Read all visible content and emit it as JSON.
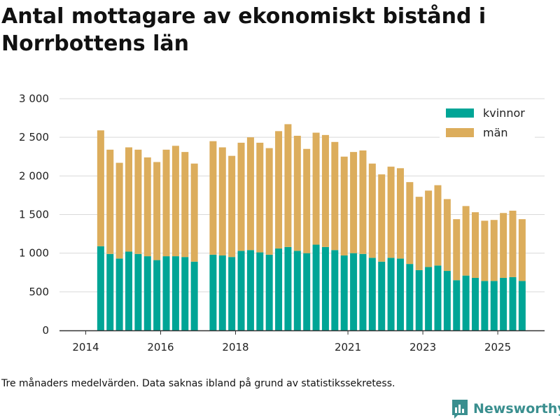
{
  "chart_data": {
    "type": "bar",
    "stacked": true,
    "title": "Antal mottagare av ekonomiskt bistånd i Norrbottens län",
    "xlabel": "",
    "ylabel": "",
    "ylim": [
      0,
      3000
    ],
    "yticks": [
      0,
      500,
      1000,
      1500,
      2000,
      2500,
      3000
    ],
    "ytick_labels": [
      "0",
      "500",
      "1 000",
      "1 500",
      "2 000",
      "2 500",
      "3 000"
    ],
    "xticks": [
      2014,
      2016,
      2018,
      2021,
      2023,
      2025
    ],
    "xtick_labels": [
      "2014",
      "2016",
      "2018",
      "2021",
      "2023",
      "2025"
    ],
    "x_start_year": 2013.3,
    "x_end_year": 2026.25,
    "legend_position": "top-right",
    "grid": true,
    "x": [
      2014.4,
      2014.65,
      2014.9,
      2015.15,
      2015.4,
      2015.65,
      2015.9,
      2016.15,
      2016.4,
      2016.65,
      2016.9,
      2017.4,
      2017.65,
      2017.9,
      2018.15,
      2018.4,
      2018.65,
      2018.9,
      2019.15,
      2019.4,
      2019.65,
      2019.9,
      2020.15,
      2020.4,
      2020.65,
      2020.9,
      2021.15,
      2021.4,
      2021.65,
      2021.9,
      2022.15,
      2022.4,
      2022.65,
      2022.9,
      2023.15,
      2023.4,
      2023.65,
      2023.9,
      2024.15,
      2024.4,
      2024.65,
      2024.9,
      2025.15,
      2025.4,
      2025.65
    ],
    "series": [
      {
        "name": "kvinnor",
        "color": "#00a596",
        "values": [
          1090,
          990,
          930,
          1020,
          990,
          960,
          910,
          960,
          960,
          950,
          890,
          980,
          970,
          950,
          1030,
          1040,
          1010,
          980,
          1060,
          1080,
          1030,
          1000,
          1110,
          1080,
          1040,
          970,
          1000,
          990,
          940,
          890,
          940,
          930,
          860,
          780,
          820,
          840,
          770,
          650,
          710,
          680,
          640,
          640,
          680,
          690,
          640
        ]
      },
      {
        "name": "män",
        "color": "#dcad5c",
        "values": [
          1500,
          1350,
          1240,
          1350,
          1350,
          1280,
          1270,
          1380,
          1430,
          1360,
          1270,
          1470,
          1400,
          1310,
          1400,
          1460,
          1420,
          1380,
          1520,
          1590,
          1490,
          1350,
          1450,
          1450,
          1400,
          1280,
          1310,
          1340,
          1220,
          1130,
          1180,
          1170,
          1060,
          950,
          990,
          1040,
          930,
          790,
          900,
          850,
          780,
          790,
          840,
          860,
          800
        ]
      }
    ]
  },
  "footer": {
    "note": "Tre månaders medelvärden. Data saknas ibland på grund av statistikssekretess.",
    "brand": "Newsworthy",
    "brand_color": "#3a8f8f"
  }
}
